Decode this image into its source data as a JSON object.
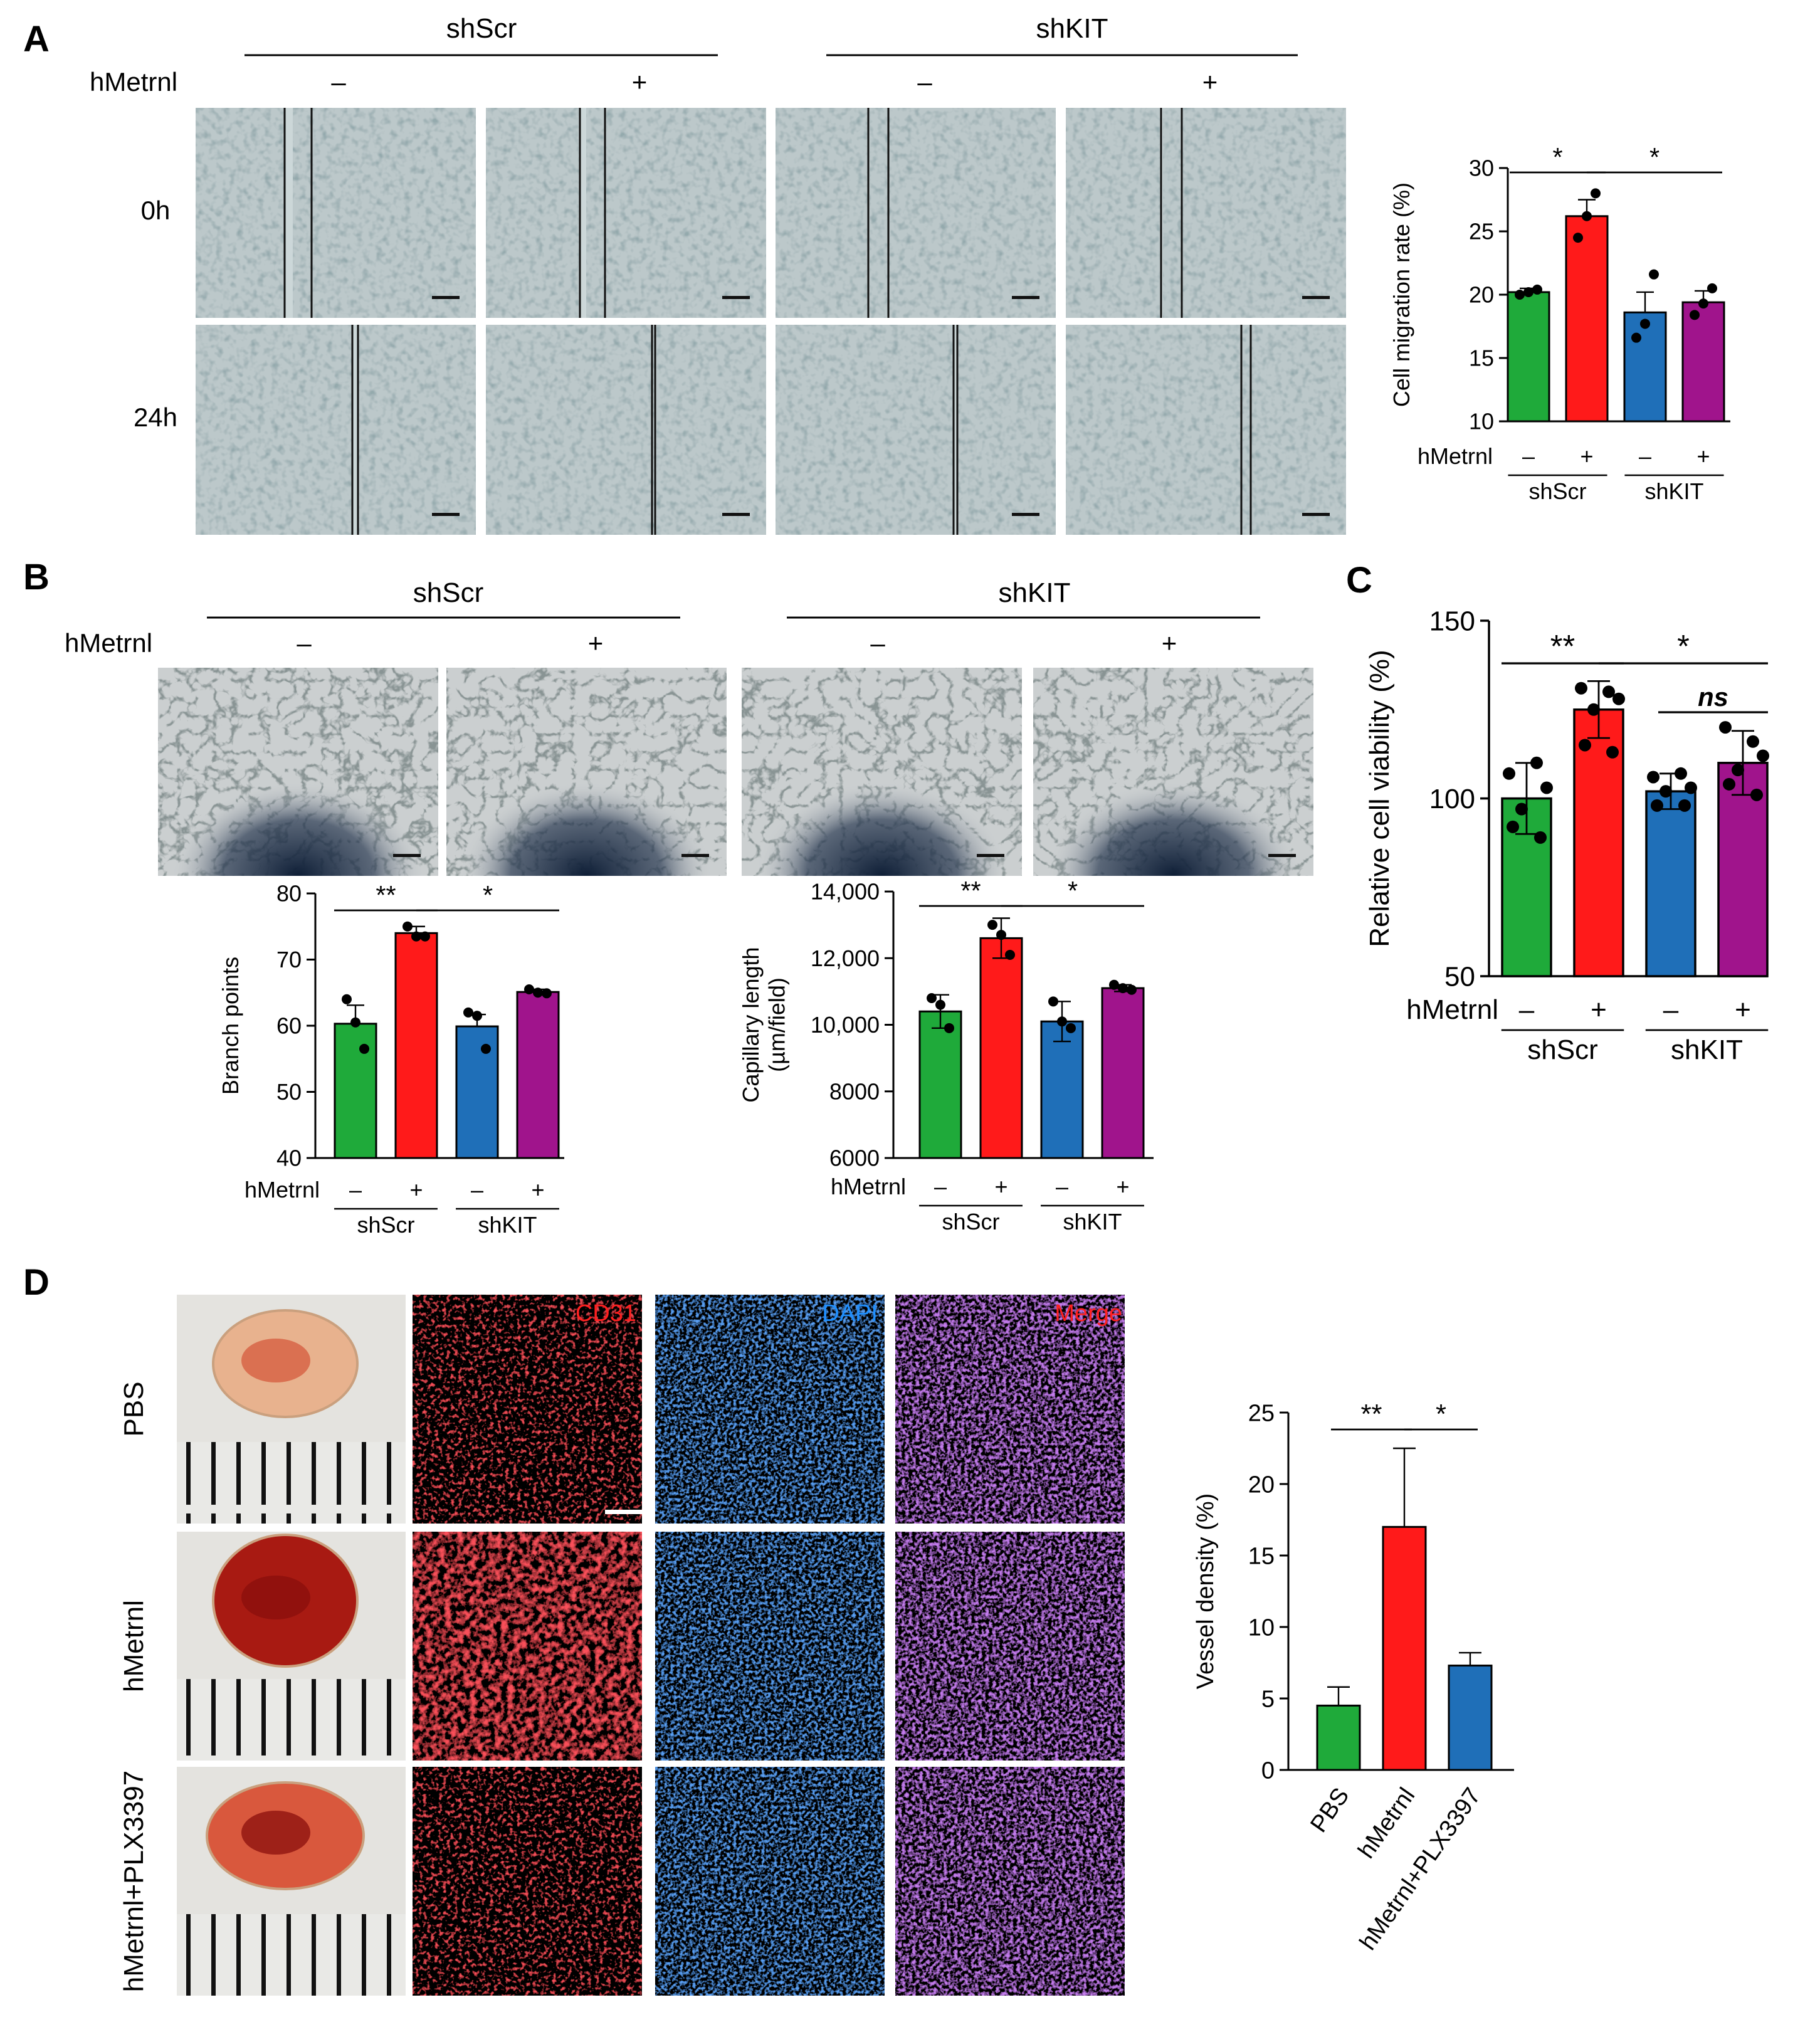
{
  "panel_letters": [
    "A",
    "B",
    "C",
    "D"
  ],
  "panel_a": {
    "groups": [
      "shScr",
      "shKIT"
    ],
    "treatment_label": "hMetrnl",
    "signs": [
      "–",
      "+",
      "–",
      "+"
    ],
    "timepoints": [
      "0h",
      "24h"
    ]
  },
  "panel_b": {
    "groups": [
      "shScr",
      "shKIT"
    ],
    "treatment_label": "hMetrnl",
    "signs": [
      "–",
      "+",
      "–",
      "+"
    ]
  },
  "panel_d": {
    "rows": [
      "PBS",
      "hMetrnl",
      "hMetrnl+PLX3397"
    ],
    "channels": [
      "CD31",
      "DAPI",
      "Merge"
    ]
  },
  "colors": {
    "green": "#1faa3a",
    "red": "#ff1a1a",
    "blue": "#1f6fb8",
    "purple": "#a0148c"
  },
  "chart_data": [
    {
      "id": "migration",
      "type": "bar",
      "ylabel": "Cell migration rate (%)",
      "categories": [
        "shScr –",
        "shScr +",
        "shKIT –",
        "shKIT +"
      ],
      "values": [
        20.2,
        26.2,
        18.6,
        19.4
      ],
      "errors": [
        0.3,
        1.3,
        1.6,
        0.9
      ],
      "points": [
        [
          20.0,
          20.2,
          20.4
        ],
        [
          24.5,
          26.2,
          28.0
        ],
        [
          16.6,
          17.7,
          21.6
        ],
        [
          18.4,
          19.3,
          20.5
        ]
      ],
      "ylim": [
        10,
        30
      ],
      "yticks": [
        10,
        15,
        20,
        25,
        30
      ],
      "treatment_label": "hMetrnl",
      "signs": [
        "–",
        "+",
        "–",
        "+"
      ],
      "groups": [
        "shScr",
        "shKIT"
      ],
      "significance": [
        {
          "from": 0,
          "to": 1,
          "label": "*"
        },
        {
          "from": 1,
          "to": 3,
          "label": "*"
        }
      ]
    },
    {
      "id": "branch",
      "type": "bar",
      "ylabel": "Branch points",
      "categories": [
        "shScr –",
        "shScr +",
        "shKIT –",
        "shKIT +"
      ],
      "values": [
        60.3,
        74.0,
        59.9,
        65.1
      ],
      "errors": [
        2.8,
        1.0,
        1.8,
        0.4
      ],
      "points": [
        [
          64.0,
          60.5,
          56.5
        ],
        [
          75.0,
          73.5,
          73.5
        ],
        [
          62.0,
          61.5,
          56.5
        ],
        [
          65.5,
          65.0,
          64.9
        ]
      ],
      "ylim": [
        40,
        80
      ],
      "yticks": [
        40,
        50,
        60,
        70,
        80
      ],
      "treatment_label": "hMetrnl",
      "signs": [
        "–",
        "+",
        "–",
        "+"
      ],
      "groups": [
        "shScr",
        "shKIT"
      ],
      "significance": [
        {
          "from": 0,
          "to": 1,
          "label": "**"
        },
        {
          "from": 1,
          "to": 3,
          "label": "*"
        }
      ]
    },
    {
      "id": "capillary",
      "type": "bar",
      "ylabel_lines": [
        "Capillary length",
        "(µm/field)"
      ],
      "categories": [
        "shScr –",
        "shScr +",
        "shKIT –",
        "shKIT +"
      ],
      "values": [
        10400,
        12600,
        10100,
        11100
      ],
      "errors": [
        500,
        600,
        600,
        100
      ],
      "points": [
        [
          10800,
          10600,
          9900
        ],
        [
          13000,
          12700,
          12100
        ],
        [
          10700,
          10100,
          9900
        ],
        [
          11200,
          11100,
          11050
        ]
      ],
      "ylim": [
        6000,
        14000
      ],
      "yticks": [
        6000,
        8000,
        10000,
        12000,
        14000
      ],
      "ytick_labels": [
        "6000",
        "8000",
        "10,000",
        "12,000",
        "14,000"
      ],
      "treatment_label": "hMetrnl",
      "signs": [
        "–",
        "+",
        "–",
        "+"
      ],
      "groups": [
        "shScr",
        "shKIT"
      ],
      "significance": [
        {
          "from": 0,
          "to": 1,
          "label": "**"
        },
        {
          "from": 1,
          "to": 3,
          "label": "*"
        }
      ]
    },
    {
      "id": "viability",
      "type": "bar",
      "ylabel": "Relative cell viability (%)",
      "categories": [
        "shScr –",
        "shScr +",
        "shKIT –",
        "shKIT +"
      ],
      "values": [
        100,
        125,
        102,
        110
      ],
      "errors": [
        10,
        8,
        5,
        9
      ],
      "points": [
        [
          107,
          110,
          103,
          97,
          92,
          89
        ],
        [
          131,
          130,
          128,
          125,
          115,
          113
        ],
        [
          106,
          107,
          103,
          102,
          98,
          98
        ],
        [
          120,
          116,
          112,
          108,
          104,
          101
        ]
      ],
      "ylim": [
        50,
        150
      ],
      "yticks": [
        50,
        100,
        150
      ],
      "treatment_label": "hMetrnl",
      "signs": [
        "–",
        "+",
        "–",
        "+"
      ],
      "groups": [
        "shScr",
        "shKIT"
      ],
      "significance": [
        {
          "from": 0,
          "to": 1,
          "label": "**"
        },
        {
          "from": 1,
          "to": 3,
          "label": "*"
        },
        {
          "from": 2,
          "to": 3,
          "label": "ns",
          "italic": true
        }
      ]
    },
    {
      "id": "vessel",
      "type": "bar",
      "ylabel": "Vessel density (%)",
      "categories": [
        "PBS",
        "hMetrnl",
        "hMetrnl+PLX3397"
      ],
      "values": [
        4.5,
        17.0,
        7.3
      ],
      "errors": [
        1.3,
        5.5,
        0.9
      ],
      "ylim": [
        0,
        25
      ],
      "yticks": [
        0,
        5,
        10,
        15,
        20,
        25
      ],
      "significance": [
        {
          "from": 0,
          "to": 1,
          "label": "**"
        },
        {
          "from": 1,
          "to": 2,
          "label": "*"
        }
      ]
    }
  ]
}
